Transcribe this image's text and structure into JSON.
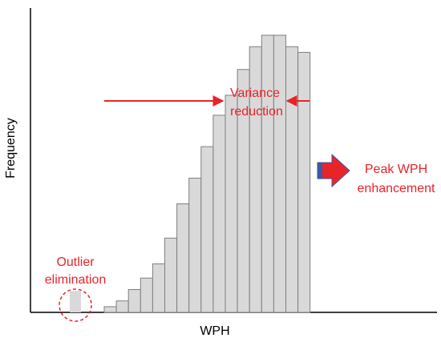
{
  "chart_data": {
    "type": "bar",
    "xlabel": "WPH",
    "ylabel": "Frequency",
    "grid": false,
    "bar_color": "#d9d9d9",
    "bar_edge_color": "#7f7f7f",
    "ylim": [
      0,
      100
    ],
    "outlier_value": 7.5,
    "values": [
      2,
      4,
      8,
      12,
      17,
      26,
      38,
      47,
      58,
      69,
      76,
      85,
      93,
      97,
      97,
      93,
      91
    ],
    "annotations": {
      "outlier": {
        "text_line1": "Outlier",
        "text_line2": "elimination",
        "color": "#e8232a"
      },
      "variance": {
        "text_line1": "Variance",
        "text_line2": "reduction",
        "color": "#e8232a"
      },
      "peak": {
        "text_line1": "Peak WPH",
        "text_line2": "enhancement",
        "color": "#e8232a",
        "arrow_color": "#e8232a",
        "arrow_edge": "#3b5aa6"
      }
    }
  }
}
